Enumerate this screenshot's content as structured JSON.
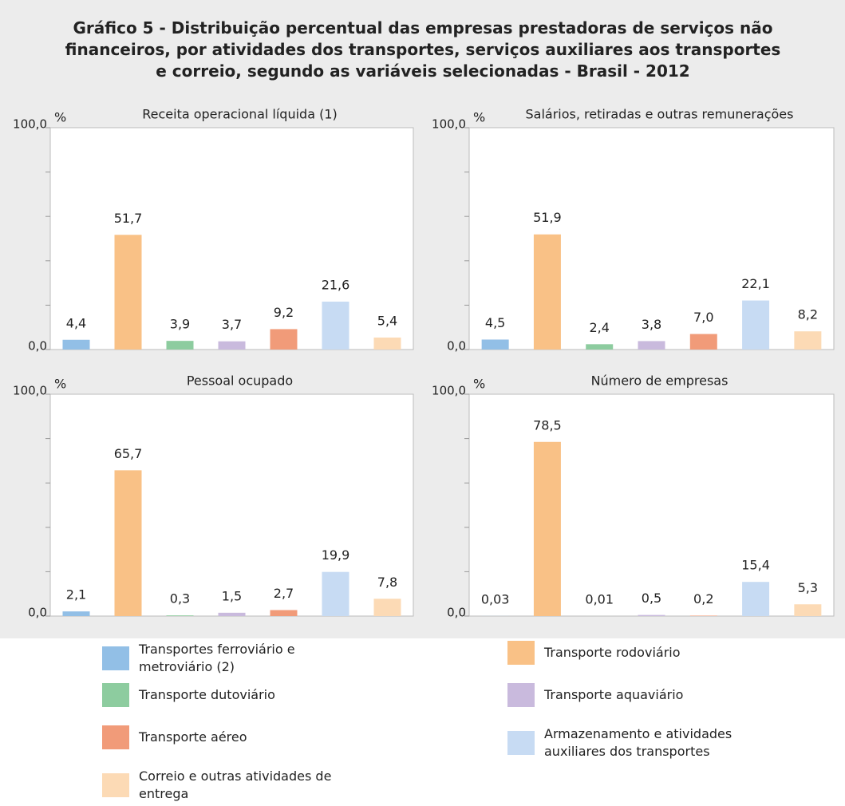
{
  "title": "Gráfico 5 - Distribuição percentual das empresas prestadoras de serviços não financeiros, por atividades dos transportes, serviços auxiliares aos transportes e correio, segundo as variáveis selecionadas - Brasil - 2012",
  "legend": {
    "names": [
      "Transportes ferroviário e metroviário (2)",
      "Transporte rodoviário",
      "Transporte dutoviário",
      "Transporte aquaviário",
      "Transporte aéreo",
      "Armazenamento e atividades auxiliares dos transportes",
      "Correio e outras atividades de entrega"
    ],
    "colors": [
      "#92bfe6",
      "#f9c186",
      "#8dcc9f",
      "#c9badd",
      "#f19b79",
      "#c7dbf3",
      "#fcdab5"
    ]
  },
  "chart_data": [
    {
      "type": "bar",
      "title": "Receita operacional líquida (1)",
      "ylabel": "%",
      "values": [
        4.4,
        51.7,
        3.9,
        3.7,
        9.2,
        21.6,
        5.4
      ],
      "value_labels": [
        "4,4",
        "51,7",
        "3,9",
        "3,7",
        "9,2",
        "21,6",
        "5,4"
      ],
      "ylim": [
        0,
        100
      ],
      "yticks": [
        {
          "value": 0,
          "label": "0,0"
        },
        {
          "value": 100,
          "label": "100,0"
        }
      ],
      "minor_yticks": [
        20,
        40,
        60,
        80
      ]
    },
    {
      "type": "bar",
      "title": "Salários, retiradas e outras remunerações",
      "ylabel": "%",
      "values": [
        4.5,
        51.9,
        2.4,
        3.8,
        7.0,
        22.1,
        8.2
      ],
      "value_labels": [
        "4,5",
        "51,9",
        "2,4",
        "3,8",
        "7,0",
        "22,1",
        "8,2"
      ],
      "ylim": [
        0,
        100
      ],
      "yticks": [
        {
          "value": 0,
          "label": "0,0"
        },
        {
          "value": 100,
          "label": "100,0"
        }
      ],
      "minor_yticks": [
        20,
        40,
        60,
        80
      ]
    },
    {
      "type": "bar",
      "title": "Pessoal ocupado",
      "ylabel": "%",
      "values": [
        2.1,
        65.7,
        0.3,
        1.5,
        2.7,
        19.9,
        7.8
      ],
      "value_labels": [
        "2,1",
        "65,7",
        "0,3",
        "1,5",
        "2,7",
        "19,9",
        "7,8"
      ],
      "ylim": [
        0,
        100
      ],
      "yticks": [
        {
          "value": 0,
          "label": "0,0"
        },
        {
          "value": 100,
          "label": "100,0"
        }
      ],
      "minor_yticks": [
        20,
        40,
        60,
        80
      ]
    },
    {
      "type": "bar",
      "title": "Número de empresas",
      "ylabel": "%",
      "values": [
        0.03,
        78.5,
        0.01,
        0.5,
        0.2,
        15.4,
        5.3
      ],
      "value_labels": [
        "0,03",
        "78,5",
        "0,01",
        "0,5",
        "0,2",
        "15,4",
        "5,3"
      ],
      "ylim": [
        0,
        100
      ],
      "yticks": [
        {
          "value": 0,
          "label": "0,0"
        },
        {
          "value": 100,
          "label": "100,0"
        }
      ],
      "minor_yticks": [
        20,
        40,
        60,
        80
      ]
    }
  ]
}
